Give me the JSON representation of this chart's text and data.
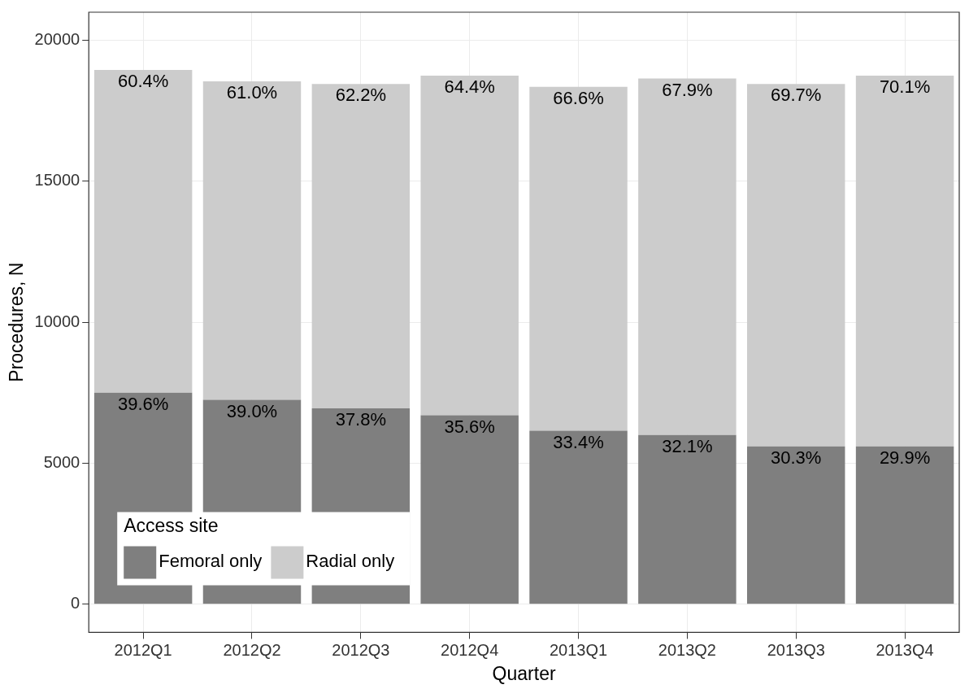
{
  "chart_data": {
    "type": "bar",
    "stacked": true,
    "xlabel": "Quarter",
    "ylabel": "Procedures, N",
    "legend_title": "Access site",
    "legend": "bottom left",
    "grid": true,
    "categories": [
      "2012Q1",
      "2012Q2",
      "2012Q3",
      "2012Q4",
      "2013Q1",
      "2013Q2",
      "2013Q3",
      "2013Q4"
    ],
    "ylim": [
      -1000,
      21000
    ],
    "yticks": [
      0,
      5000,
      10000,
      15000,
      20000
    ],
    "series": [
      {
        "name": "Femoral only",
        "color": "#7f7f7f",
        "values": [
          7500,
          7250,
          6950,
          6700,
          6150,
          6000,
          5600,
          5600
        ]
      },
      {
        "name": "Radial only",
        "color": "#cccccc",
        "values": [
          11450,
          11300,
          11500,
          12050,
          12200,
          12650,
          12850,
          13150
        ]
      }
    ],
    "annotations": [
      {
        "text": "39.6%",
        "x": "2012Q1",
        "y": 7500
      },
      {
        "text": "39.0%",
        "x": "2012Q2",
        "y": 7250
      },
      {
        "text": "37.8%",
        "x": "2012Q3",
        "y": 6950
      },
      {
        "text": "35.6%",
        "x": "2012Q4",
        "y": 6700
      },
      {
        "text": "33.4%",
        "x": "2013Q1",
        "y": 6150
      },
      {
        "text": "32.1%",
        "x": "2013Q2",
        "y": 6000
      },
      {
        "text": "30.3%",
        "x": "2013Q3",
        "y": 5600
      },
      {
        "text": "29.9%",
        "x": "2013Q4",
        "y": 5600
      },
      {
        "text": "60.4%",
        "x": "2012Q1",
        "y": 18950
      },
      {
        "text": "61.0%",
        "x": "2012Q2",
        "y": 18550
      },
      {
        "text": "62.2%",
        "x": "2012Q3",
        "y": 18450
      },
      {
        "text": "64.4%",
        "x": "2012Q4",
        "y": 18750
      },
      {
        "text": "66.6%",
        "x": "2013Q1",
        "y": 18350
      },
      {
        "text": "67.9%",
        "x": "2013Q2",
        "y": 18650
      },
      {
        "text": "69.7%",
        "x": "2013Q3",
        "y": 18450
      },
      {
        "text": "70.1%",
        "x": "2013Q4",
        "y": 18750
      }
    ]
  }
}
